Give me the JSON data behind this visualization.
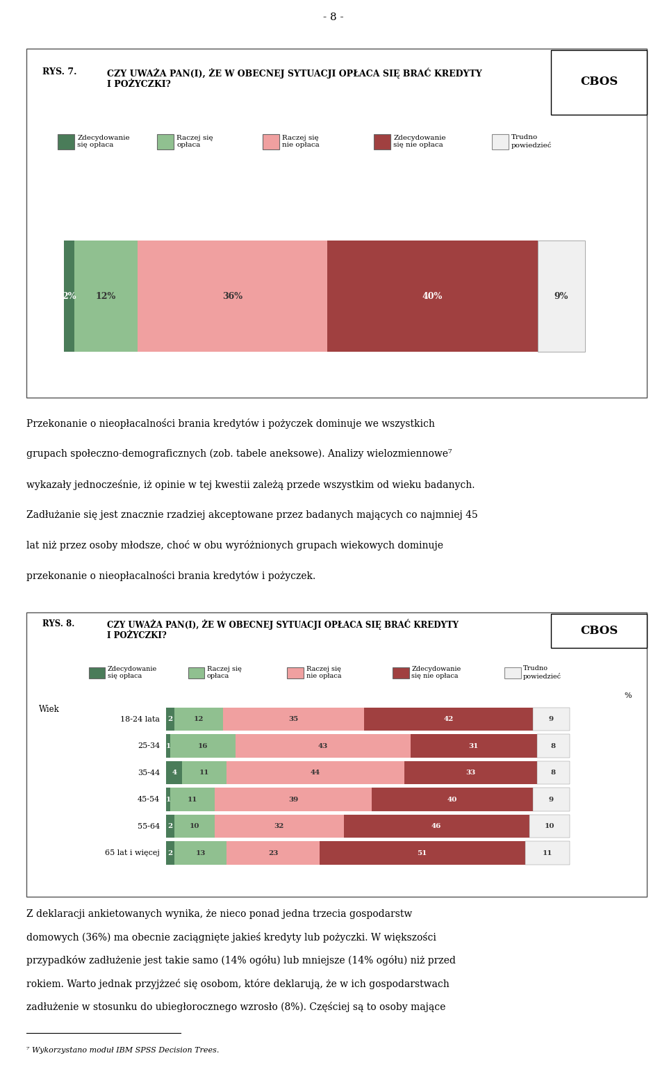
{
  "page_number": "- 8 -",
  "cbos_label": "CBOS",
  "chart1": {
    "rys_label": "RYS. 7.",
    "title": "CZY UWAŻA PAN(I), ŻE W OBECNEJ SYTUACJI OPŁACA SIĘ BRAĆ KREDYTY\nI POŻYCZKI?",
    "legend_labels": [
      "Zdecydowanie\nsię opłaca",
      "Raczej się\nopłaca",
      "Raczej się\nnie opłaca",
      "Zdecydowanie\nsię nie opłaca",
      "Trudno\npowiedzieć"
    ],
    "colors": [
      "#4a7c59",
      "#90c090",
      "#f0a0a0",
      "#a04040",
      "#f0f0f0"
    ],
    "bar_values": [
      2,
      12,
      36,
      40,
      9
    ],
    "bar_labels": [
      "2%",
      "12%",
      "36%",
      "40%",
      "9%"
    ]
  },
  "paragraph1_lines": [
    "Przekonanie o nieopłacalności brania kredytów i pożyczek dominuje we wszystkich",
    "grupach społeczno-demograficznych (zob. tabele aneksowe). Analizy wielozmiennowe⁷",
    "wykazały jednocześnie, iż opinie w tej kwestii zależą przede wszystkim od wieku badanych.",
    "Zadłużanie się jest znacznie rzadziej akceptowane przez badanych mających co najmniej 45",
    "lat niż przez osoby młodsze, choć w obu wyróżnionych grupach wiekowych dominuje",
    "przekonanie o nieopłacalności brania kredytów i pożyczek."
  ],
  "chart2": {
    "rys_label": "RYS. 8.",
    "title": "CZY UWAŻA PAN(I), ŻE W OBECNEJ SYTUACJI OPŁACA SIĘ BRAĆ KREDYTY\nI POŻYCZKI?",
    "legend_labels": [
      "Zdecydowanie\nsię opłaca",
      "Raczej się\nopłaca",
      "Raczej się\nnie opłaca",
      "Zdecydowanie\nsię nie opłaca",
      "Trudno\npowiedzieć"
    ],
    "colors": [
      "#4a7c59",
      "#90c090",
      "#f0a0a0",
      "#a04040",
      "#f0f0f0"
    ],
    "group_label": "Wiek",
    "percent_label": "%",
    "age_groups": [
      "18-24 lata",
      "25-34",
      "35-44",
      "45-54",
      "55-64",
      "65 lat i więcej"
    ],
    "data": [
      [
        2,
        12,
        35,
        42,
        9
      ],
      [
        1,
        16,
        43,
        31,
        8
      ],
      [
        4,
        11,
        44,
        33,
        8
      ],
      [
        1,
        11,
        39,
        40,
        9
      ],
      [
        2,
        10,
        32,
        46,
        10
      ],
      [
        2,
        13,
        23,
        51,
        11
      ]
    ]
  },
  "paragraph2_lines": [
    "Z deklaracji ankietowanych wynika, że nieco ponad jedna trzecia gospodarstw",
    "domowych (36%) ma obecnie zaciągnięte jakieś kredyty lub pożyczki. W większości",
    "przypadków zadłużenie jest takie samo (14% ogółu) lub mniejsze (14% ogółu) niż przed",
    "rokiem. Warto jednak przyjżzeć się osobom, które deklarują, że w ich gospodarstwach",
    "zadłużenie w stosunku do ubiegłorocznego wzrosło (8%). Częściej są to osoby mające"
  ],
  "footnote_line": "_______________________",
  "footnote_text": "⁷ Wykorzystano moduł IBM SPSS Decision Trees.",
  "text_color": "#000000",
  "bg_color": "#ffffff"
}
